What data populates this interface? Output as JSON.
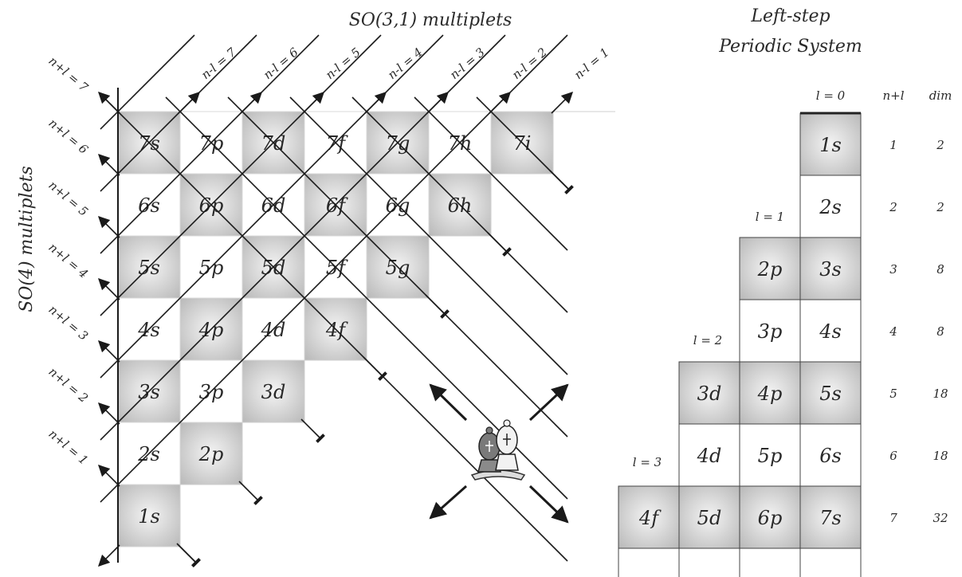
{
  "so31_title": "SO(3,1) multiplets",
  "so4_title": "SO(4) multiplets",
  "periodic_title_line1": "Left-step",
  "periodic_title_line2": "Periodic System",
  "diag_nminusl": [
    "n-l = 7",
    "n-l = 6",
    "n-l = 5",
    "n-l = 4",
    "n-l = 3",
    "n-l = 2",
    "n-l = 1"
  ],
  "diag_nplusl": [
    "n+l = 7",
    "n+l = 6",
    "n+l = 5",
    "n+l = 4",
    "n+l = 3",
    "n+l = 2",
    "n+l = 1"
  ],
  "grid_rows": [
    [
      "7s",
      "7p",
      "7d",
      "7f",
      "7g",
      "7h",
      "7i"
    ],
    [
      "6s",
      "6p",
      "6d",
      "6f",
      "6g",
      "6h"
    ],
    [
      "5s",
      "5p",
      "5d",
      "5f",
      "5g"
    ],
    [
      "4s",
      "4p",
      "4d",
      "4f"
    ],
    [
      "3s",
      "3p",
      "3d"
    ],
    [
      "2s",
      "2p"
    ],
    [
      "1s"
    ]
  ],
  "table": {
    "header_nl": "n+l",
    "header_dim": "dim",
    "l_labels": [
      "l = 0",
      "l = 1",
      "l = 2",
      "l = 3"
    ],
    "rows": [
      {
        "cells": [
          "1s"
        ],
        "nl": "1",
        "dim": "2"
      },
      {
        "cells": [
          "2s"
        ],
        "nl": "2",
        "dim": "2"
      },
      {
        "cells": [
          "2p",
          "3s"
        ],
        "nl": "3",
        "dim": "8"
      },
      {
        "cells": [
          "3p",
          "4s"
        ],
        "nl": "4",
        "dim": "8"
      },
      {
        "cells": [
          "3d",
          "4p",
          "5s"
        ],
        "nl": "5",
        "dim": "18"
      },
      {
        "cells": [
          "4d",
          "5p",
          "6s"
        ],
        "nl": "6",
        "dim": "18"
      },
      {
        "cells": [
          "4f",
          "5d",
          "6p",
          "7s"
        ],
        "nl": "7",
        "dim": "32"
      }
    ]
  },
  "icon": "bishop-chess-pieces-icon"
}
